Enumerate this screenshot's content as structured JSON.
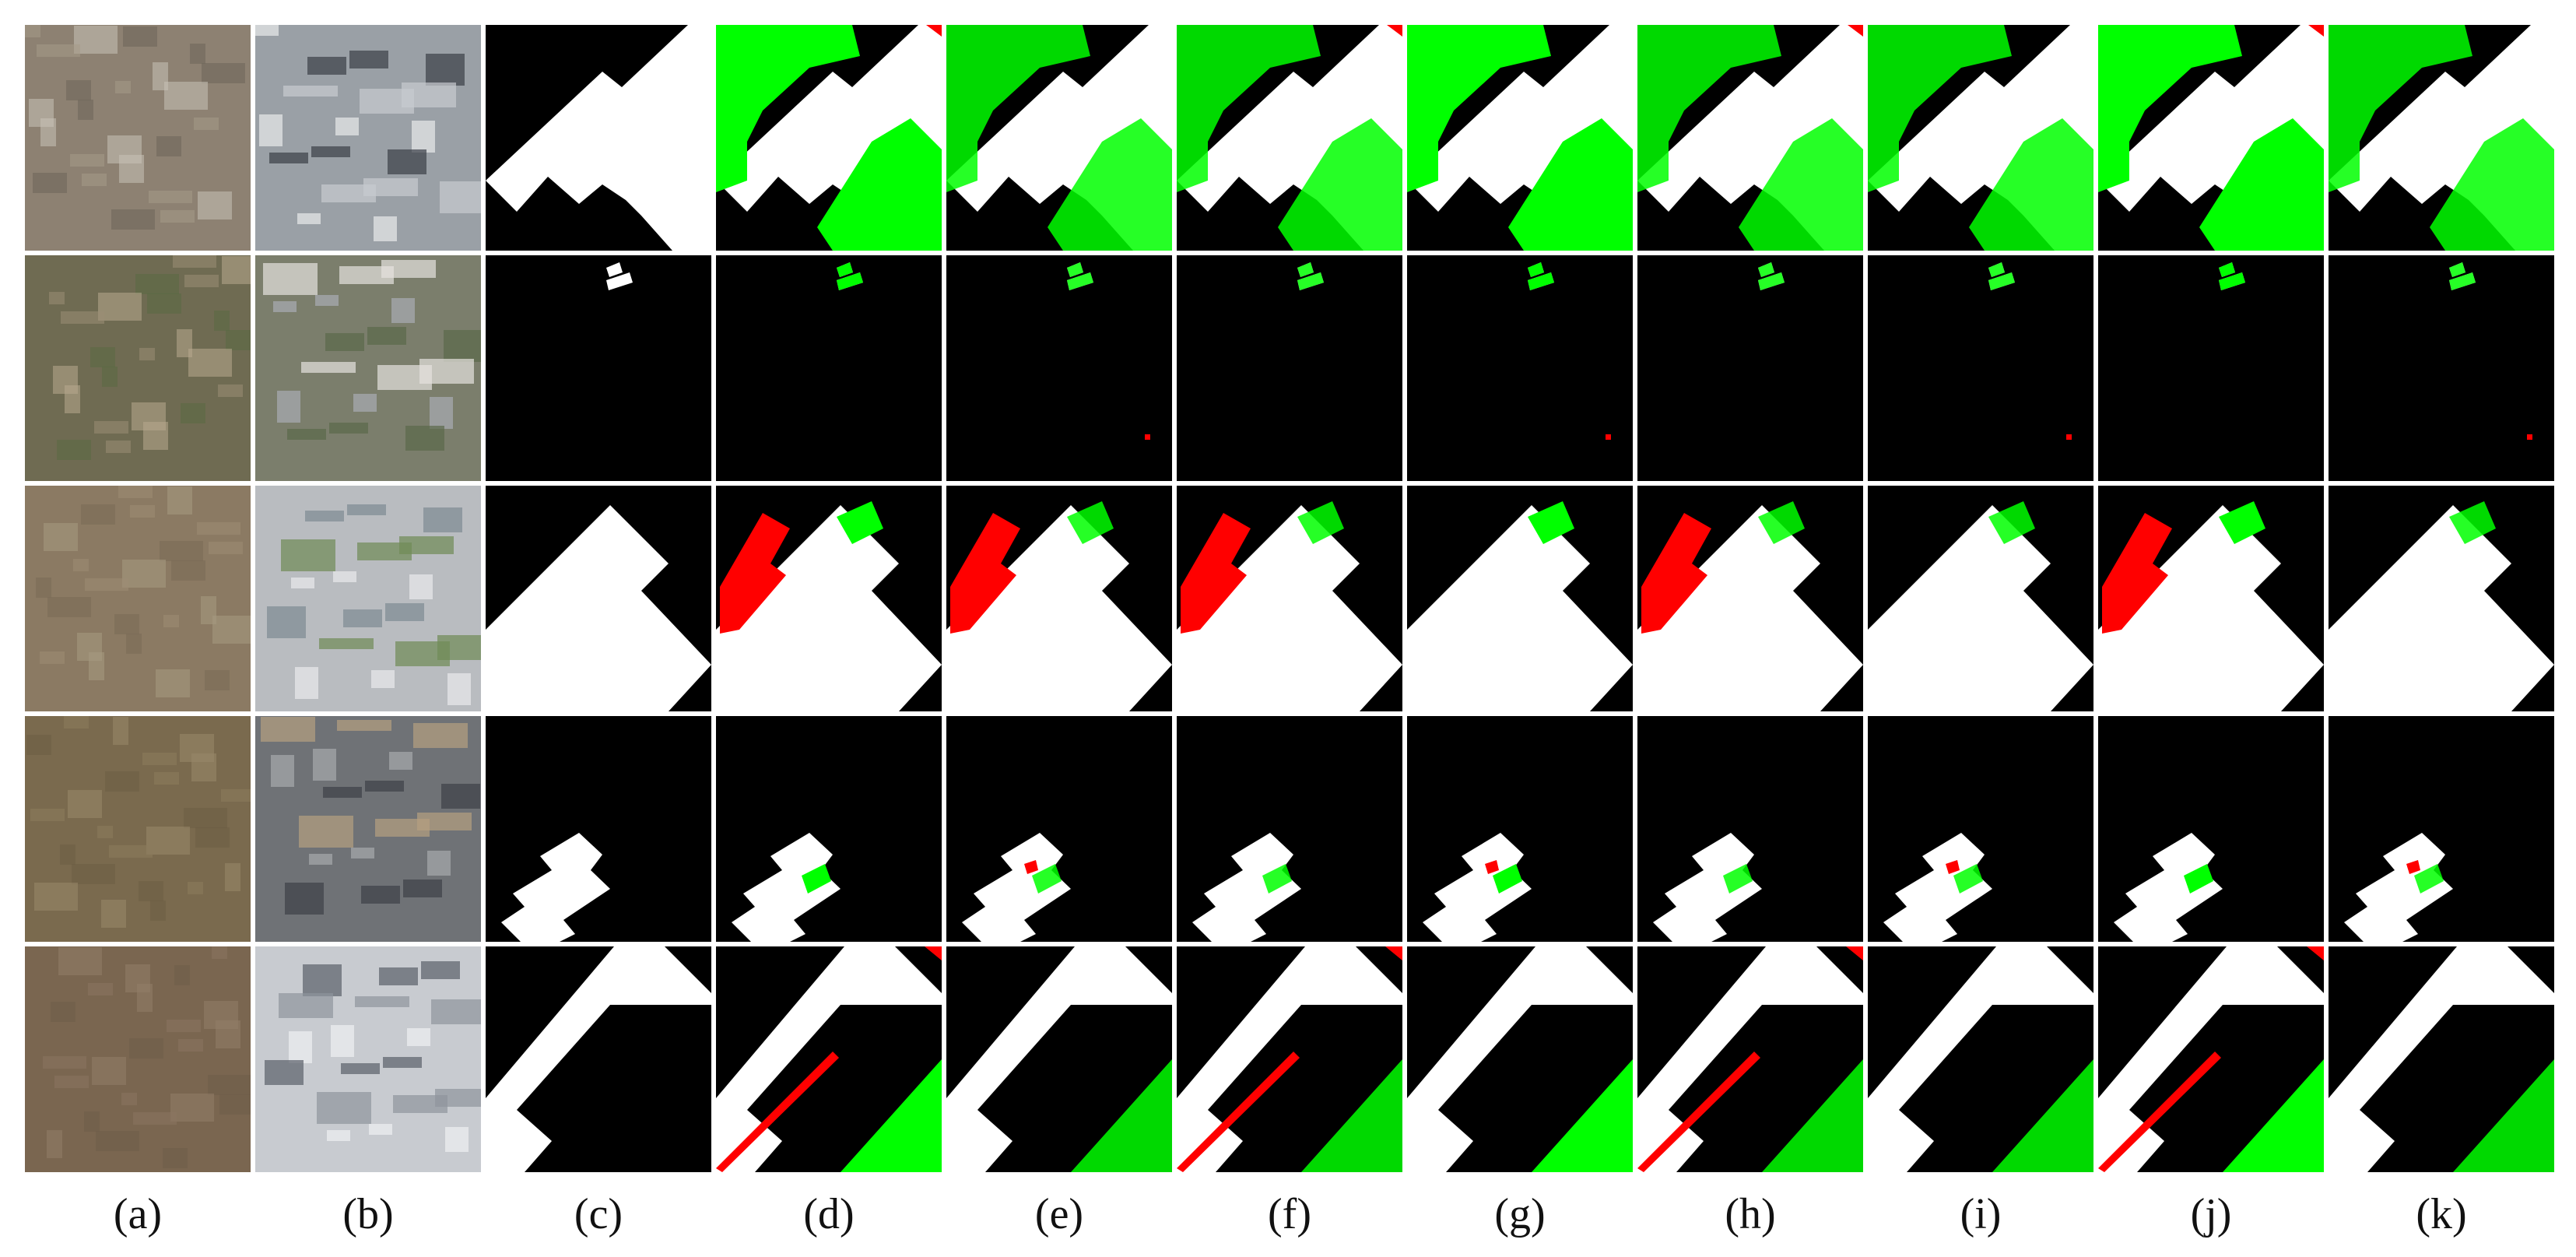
{
  "figure": {
    "column_labels": [
      "(a)",
      "(b)",
      "(c)",
      "(d)",
      "(e)",
      "(f)",
      "(g)",
      "(h)",
      "(i)",
      "(j)",
      "(k)"
    ],
    "columns": [
      {
        "label": "(a)",
        "kind": "aerial-image-t1"
      },
      {
        "label": "(b)",
        "kind": "aerial-image-t2"
      },
      {
        "label": "(c)",
        "kind": "ground-truth-change-mask"
      },
      {
        "label": "(d)",
        "kind": "prediction-map"
      },
      {
        "label": "(e)",
        "kind": "prediction-map"
      },
      {
        "label": "(f)",
        "kind": "prediction-map"
      },
      {
        "label": "(g)",
        "kind": "prediction-map"
      },
      {
        "label": "(h)",
        "kind": "prediction-map"
      },
      {
        "label": "(i)",
        "kind": "prediction-map"
      },
      {
        "label": "(j)",
        "kind": "prediction-map"
      },
      {
        "label": "(k)",
        "kind": "prediction-map"
      }
    ],
    "row_count": 5,
    "legend_colors": {
      "true_positive": "#ffffff",
      "true_negative": "#000000",
      "false_positive": "#ff0000",
      "false_negative": "#00ff00"
    }
  }
}
